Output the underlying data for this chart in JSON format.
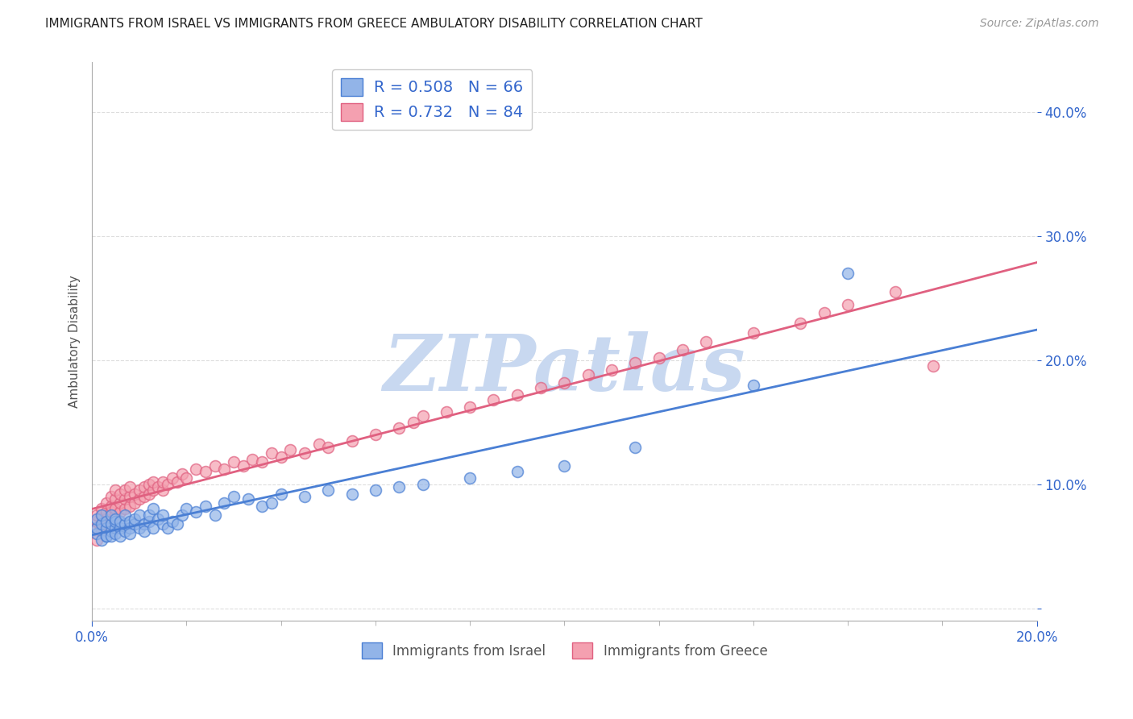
{
  "title": "IMMIGRANTS FROM ISRAEL VS IMMIGRANTS FROM GREECE AMBULATORY DISABILITY CORRELATION CHART",
  "source": "Source: ZipAtlas.com",
  "ylabel": "Ambulatory Disability",
  "xlim": [
    0.0,
    0.2
  ],
  "ylim": [
    -0.01,
    0.44
  ],
  "yticks": [
    0.0,
    0.1,
    0.2,
    0.3,
    0.4
  ],
  "israel_color": "#92b4e8",
  "greece_color": "#f4a0b0",
  "israel_line_color": "#4a7fd4",
  "greece_line_color": "#e06080",
  "israel_R": 0.508,
  "israel_N": 66,
  "greece_R": 0.732,
  "greece_N": 84,
  "watermark_text": "ZIPatlas",
  "watermark_color": "#c8d8f0",
  "israel_x": [
    0.001,
    0.001,
    0.001,
    0.002,
    0.002,
    0.002,
    0.003,
    0.003,
    0.003,
    0.003,
    0.004,
    0.004,
    0.004,
    0.004,
    0.005,
    0.005,
    0.005,
    0.005,
    0.006,
    0.006,
    0.006,
    0.007,
    0.007,
    0.007,
    0.008,
    0.008,
    0.008,
    0.009,
    0.009,
    0.01,
    0.01,
    0.011,
    0.011,
    0.012,
    0.012,
    0.013,
    0.013,
    0.014,
    0.015,
    0.015,
    0.016,
    0.017,
    0.018,
    0.019,
    0.02,
    0.022,
    0.024,
    0.026,
    0.028,
    0.03,
    0.033,
    0.036,
    0.038,
    0.04,
    0.045,
    0.05,
    0.055,
    0.06,
    0.065,
    0.07,
    0.08,
    0.09,
    0.1,
    0.115,
    0.14,
    0.16
  ],
  "israel_y": [
    0.06,
    0.065,
    0.072,
    0.055,
    0.068,
    0.075,
    0.058,
    0.065,
    0.07,
    0.058,
    0.062,
    0.068,
    0.075,
    0.058,
    0.065,
    0.07,
    0.06,
    0.072,
    0.065,
    0.07,
    0.058,
    0.062,
    0.068,
    0.075,
    0.065,
    0.07,
    0.06,
    0.068,
    0.072,
    0.065,
    0.075,
    0.068,
    0.062,
    0.07,
    0.075,
    0.065,
    0.08,
    0.072,
    0.068,
    0.075,
    0.065,
    0.07,
    0.068,
    0.075,
    0.08,
    0.078,
    0.082,
    0.075,
    0.085,
    0.09,
    0.088,
    0.082,
    0.085,
    0.092,
    0.09,
    0.095,
    0.092,
    0.095,
    0.098,
    0.1,
    0.105,
    0.11,
    0.115,
    0.13,
    0.18,
    0.27
  ],
  "greece_x": [
    0.001,
    0.001,
    0.001,
    0.001,
    0.002,
    0.002,
    0.002,
    0.002,
    0.003,
    0.003,
    0.003,
    0.003,
    0.004,
    0.004,
    0.004,
    0.004,
    0.005,
    0.005,
    0.005,
    0.005,
    0.006,
    0.006,
    0.006,
    0.007,
    0.007,
    0.007,
    0.008,
    0.008,
    0.008,
    0.009,
    0.009,
    0.01,
    0.01,
    0.011,
    0.011,
    0.012,
    0.012,
    0.013,
    0.013,
    0.014,
    0.015,
    0.015,
    0.016,
    0.017,
    0.018,
    0.019,
    0.02,
    0.022,
    0.024,
    0.026,
    0.028,
    0.03,
    0.032,
    0.034,
    0.036,
    0.038,
    0.04,
    0.042,
    0.045,
    0.048,
    0.05,
    0.055,
    0.06,
    0.065,
    0.068,
    0.07,
    0.075,
    0.08,
    0.085,
    0.09,
    0.095,
    0.1,
    0.105,
    0.11,
    0.115,
    0.12,
    0.125,
    0.13,
    0.14,
    0.15,
    0.155,
    0.16,
    0.17,
    0.178
  ],
  "greece_y": [
    0.055,
    0.065,
    0.07,
    0.075,
    0.062,
    0.068,
    0.075,
    0.08,
    0.065,
    0.072,
    0.078,
    0.085,
    0.07,
    0.078,
    0.082,
    0.09,
    0.075,
    0.08,
    0.088,
    0.095,
    0.078,
    0.085,
    0.092,
    0.08,
    0.088,
    0.095,
    0.082,
    0.09,
    0.098,
    0.085,
    0.092,
    0.088,
    0.095,
    0.09,
    0.098,
    0.092,
    0.1,
    0.095,
    0.102,
    0.098,
    0.095,
    0.102,
    0.1,
    0.105,
    0.102,
    0.108,
    0.105,
    0.112,
    0.11,
    0.115,
    0.112,
    0.118,
    0.115,
    0.12,
    0.118,
    0.125,
    0.122,
    0.128,
    0.125,
    0.132,
    0.13,
    0.135,
    0.14,
    0.145,
    0.15,
    0.155,
    0.158,
    0.162,
    0.168,
    0.172,
    0.178,
    0.182,
    0.188,
    0.192,
    0.198,
    0.202,
    0.208,
    0.215,
    0.222,
    0.23,
    0.238,
    0.245,
    0.255,
    0.195
  ],
  "legend_label_israel": "Immigrants from Israel",
  "legend_label_greece": "Immigrants from Greece",
  "background_color": "#ffffff",
  "grid_color": "#dddddd",
  "tick_color": "#3366cc",
  "label_color": "#555555"
}
